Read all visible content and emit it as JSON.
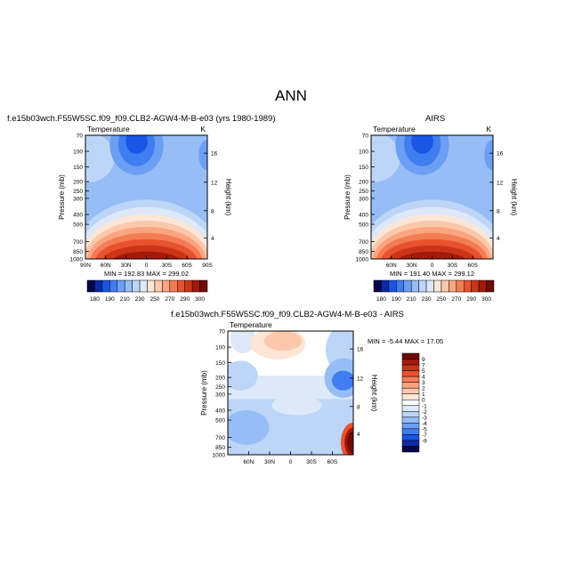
{
  "main_title": "ANN",
  "colors": {
    "scale": [
      "#06064c",
      "#0b2aa6",
      "#1a55e6",
      "#3f7df0",
      "#6b9ff3",
      "#96bdf5",
      "#bdd5f7",
      "#dde9f9",
      "#fde6d6",
      "#fcc8ac",
      "#fba580",
      "#f47c55",
      "#e7532f",
      "#cc3418",
      "#a31a0c",
      "#6f0a06"
    ],
    "diff_scale": [
      "#06064c",
      "#0b2aa6",
      "#1a55e6",
      "#3f7df0",
      "#6b9ff3",
      "#96bdf5",
      "#bdd5f7",
      "#dde9f9",
      "#ffffff",
      "#fde6d6",
      "#fcc8ac",
      "#fba580",
      "#f47c55",
      "#e7532f",
      "#cc3418",
      "#a31a0c",
      "#6f0a06"
    ]
  },
  "panels": {
    "model": {
      "title": "f.e15b03wch.F55W5SC.f09_f09.CLB2-AGW4-M-B-e03 (yrs 1980-1989)",
      "left_label": "Temperature",
      "right_label": "K",
      "minmax": "MIN = 192.83   MAX = 299.02"
    },
    "obs": {
      "title": "AIRS",
      "left_label": "Temperature",
      "right_label": "K",
      "minmax": "MIN = 191.40   MAX = 299.12"
    },
    "diff": {
      "title": "f.e15b03wch.F55W5SC.f09_f09.CLB2-AGW4-M-B-e03 - AIRS",
      "left_label": "Temperature",
      "right_label": "",
      "minmax": "MIN =  -5.44   MAX =  17.05"
    }
  },
  "chart_data": [
    {
      "type": "heatmap",
      "name": "model",
      "title": "f.e15b03wch.F55W5SC.f09_f09.CLB2-AGW4-M-B-e03 (yrs 1980-1989)",
      "variable": "Temperature",
      "units": "K",
      "ylabel": "Pressure (mb)",
      "y2label": "Height (km)",
      "xticks": [
        "90N",
        "60N",
        "30N",
        "0",
        "30S",
        "60S",
        "90S"
      ],
      "yticks": [
        "70",
        "100",
        "150",
        "200",
        "250",
        "300",
        "400",
        "500",
        "700",
        "850",
        "1000"
      ],
      "y2ticks": [
        "4",
        "8",
        "12",
        "16"
      ],
      "colorbar_labels": [
        "180",
        "190",
        "210",
        "230",
        "250",
        "270",
        "290",
        "300"
      ],
      "min": 192.83,
      "max": 299.02
    },
    {
      "type": "heatmap",
      "name": "obs",
      "title": "AIRS",
      "variable": "Temperature",
      "units": "K",
      "ylabel": "Pressure (mb)",
      "y2label": "Height (km)",
      "xticks": [
        "60N",
        "30N",
        "0",
        "30S",
        "60S"
      ],
      "yticks": [
        "70",
        "100",
        "150",
        "200",
        "250",
        "300",
        "400",
        "500",
        "700",
        "850",
        "1000"
      ],
      "y2ticks": [
        "4",
        "8",
        "12",
        "16"
      ],
      "colorbar_labels": [
        "180",
        "190",
        "210",
        "230",
        "250",
        "270",
        "290",
        "300"
      ],
      "min": 191.4,
      "max": 299.12
    },
    {
      "type": "heatmap",
      "name": "difference",
      "title": "f.e15b03wch.F55W5SC.f09_f09.CLB2-AGW4-M-B-e03 - AIRS",
      "variable": "Temperature",
      "ylabel": "Pressure (mb)",
      "y2label": "Height (km)",
      "xticks": [
        "60N",
        "30N",
        "0",
        "30S",
        "60S"
      ],
      "yticks": [
        "70",
        "100",
        "150",
        "200",
        "250",
        "300",
        "400",
        "500",
        "700",
        "850",
        "1000"
      ],
      "y2ticks": [
        "4",
        "8",
        "12",
        "16"
      ],
      "colorbar_labels": [
        "9",
        "7",
        "5",
        "4",
        "3",
        "2",
        "1",
        "0",
        "-1",
        "-2",
        "-3",
        "-4",
        "-5",
        "-7",
        "-9"
      ],
      "min": -5.44,
      "max": 17.05
    }
  ]
}
